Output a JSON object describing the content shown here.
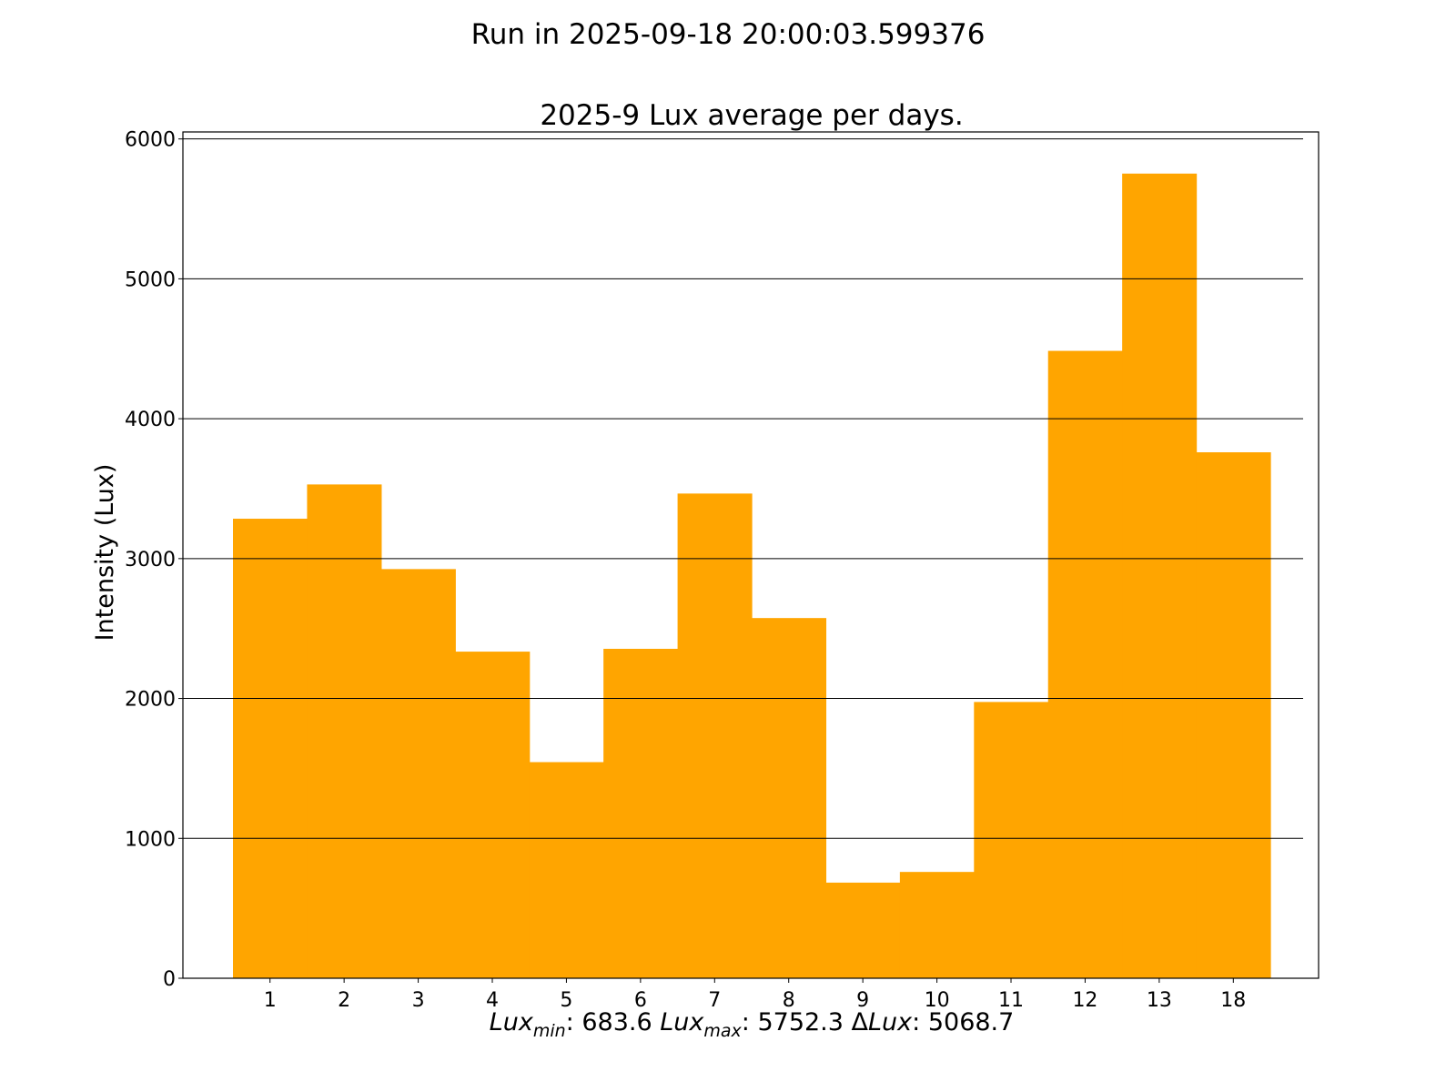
{
  "figure_title": "Run in 2025-09-18 20:00:03.599376",
  "chart_data": {
    "type": "bar",
    "title": "2025-9 Lux average per days.",
    "ylabel": "Intensity (Lux)",
    "xlabel": "",
    "categories": [
      "1",
      "2",
      "3",
      "4",
      "5",
      "6",
      "7",
      "8",
      "9",
      "10",
      "11",
      "12",
      "13",
      "18"
    ],
    "values": [
      3285,
      3530,
      2925,
      2335,
      1545,
      2355,
      3465,
      2575,
      683.6,
      760,
      1975,
      4485,
      5752.3,
      3760
    ],
    "ylim": [
      0,
      6050
    ],
    "yticks": [
      0,
      1000,
      2000,
      3000,
      4000,
      5000,
      6000
    ],
    "bar_color": "#FFA500",
    "grid": "horizontal",
    "legend": "none"
  },
  "summary": {
    "lux_base": "Lux",
    "min_sub": "min",
    "min_value": ": 683.6",
    "max_sub": "max",
    "max_value": ": 5752.3",
    "delta_symbol": "Δ",
    "delta_value": ": 5068.7"
  }
}
